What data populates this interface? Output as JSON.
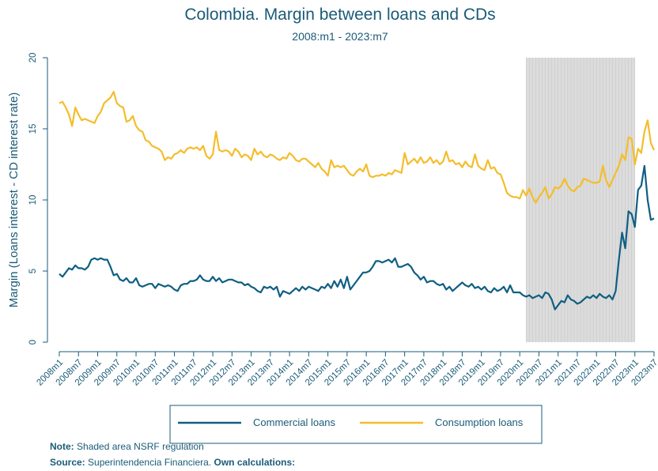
{
  "chart_data": {
    "type": "line",
    "title": "Colombia. Margin between loans and CDs",
    "subtitle": "2008:m1 - 2023:m7",
    "y_label": "Margin (Loans interest - CD interest rate)",
    "categories": [
      "2008m1",
      null,
      null,
      null,
      null,
      null,
      "2008m7",
      null,
      null,
      null,
      null,
      null,
      "2009m1",
      null,
      null,
      null,
      null,
      null,
      "2009m7",
      null,
      null,
      null,
      null,
      null,
      "2010m1",
      null,
      null,
      null,
      null,
      null,
      "2010m7",
      null,
      null,
      null,
      null,
      null,
      "2011m1",
      null,
      null,
      null,
      null,
      null,
      "2011m7",
      null,
      null,
      null,
      null,
      null,
      "2012m1",
      null,
      null,
      null,
      null,
      null,
      "2012m7",
      null,
      null,
      null,
      null,
      null,
      "2013m1",
      null,
      null,
      null,
      null,
      null,
      "2013m7",
      null,
      null,
      null,
      null,
      null,
      "2014m1",
      null,
      null,
      null,
      null,
      null,
      "2014m7",
      null,
      null,
      null,
      null,
      null,
      "2015m1",
      null,
      null,
      null,
      null,
      null,
      "2015m7",
      null,
      null,
      null,
      null,
      null,
      "2016m1",
      null,
      null,
      null,
      null,
      null,
      "2016m7",
      null,
      null,
      null,
      null,
      null,
      "2017m1",
      null,
      null,
      null,
      null,
      null,
      "2017m7",
      null,
      null,
      null,
      null,
      null,
      "2018m1",
      null,
      null,
      null,
      null,
      null,
      "2018m7",
      null,
      null,
      null,
      null,
      null,
      "2019m1",
      null,
      null,
      null,
      null,
      null,
      "2019m7",
      null,
      null,
      null,
      null,
      null,
      "2020m1",
      null,
      null,
      null,
      null,
      null,
      "2020m7",
      null,
      null,
      null,
      null,
      null,
      "2021m1",
      null,
      null,
      null,
      null,
      null,
      "2021m7",
      null,
      null,
      null,
      null,
      null,
      "2022m1",
      null,
      null,
      null,
      null,
      null,
      "2022m7",
      null,
      null,
      null,
      null,
      null,
      "2023m1",
      null,
      null,
      null,
      null,
      null,
      "2023m7"
    ],
    "series": [
      {
        "name": "Commercial loans",
        "color": "#0f5f82",
        "values": [
          4.8,
          4.6,
          4.9,
          5.2,
          5.1,
          5.4,
          5.2,
          5.2,
          5.1,
          5.3,
          5.8,
          5.9,
          5.8,
          5.9,
          5.8,
          5.8,
          5.3,
          4.7,
          4.8,
          4.4,
          4.3,
          4.5,
          4.2,
          4.2,
          4.5,
          4.0,
          3.9,
          4.0,
          4.1,
          4.1,
          3.8,
          4.1,
          4.0,
          3.9,
          4.0,
          3.9,
          3.7,
          3.6,
          4.0,
          4.1,
          4.1,
          4.3,
          4.3,
          4.4,
          4.7,
          4.4,
          4.3,
          4.3,
          4.6,
          4.3,
          4.5,
          4.2,
          4.3,
          4.4,
          4.4,
          4.3,
          4.2,
          4.2,
          4.0,
          4.1,
          3.9,
          3.8,
          3.6,
          3.5,
          3.9,
          3.8,
          3.9,
          3.7,
          3.9,
          3.2,
          3.6,
          3.5,
          3.4,
          3.6,
          3.8,
          3.6,
          3.9,
          3.7,
          3.9,
          3.8,
          3.7,
          3.6,
          3.9,
          3.8,
          4.1,
          3.8,
          4.3,
          3.9,
          4.4,
          3.8,
          4.6,
          3.7,
          4.0,
          4.3,
          4.6,
          4.9,
          4.9,
          5.0,
          5.3,
          5.7,
          5.7,
          5.6,
          5.7,
          5.8,
          5.6,
          5.9,
          5.3,
          5.3,
          5.4,
          5.5,
          5.3,
          4.9,
          4.7,
          4.4,
          4.6,
          4.2,
          4.3,
          4.3,
          4.1,
          4.0,
          4.1,
          3.7,
          3.9,
          3.6,
          3.8,
          4.0,
          4.2,
          4.0,
          3.9,
          4.1,
          3.8,
          3.9,
          3.7,
          3.9,
          3.6,
          3.5,
          3.8,
          3.6,
          3.7,
          3.9,
          3.5,
          4.0,
          3.5,
          3.5,
          3.5,
          3.3,
          3.2,
          3.3,
          3.1,
          3.2,
          3.3,
          3.1,
          3.5,
          3.4,
          3.0,
          2.3,
          2.6,
          2.9,
          2.8,
          3.3,
          3.0,
          2.9,
          2.7,
          2.8,
          3.0,
          3.2,
          3.1,
          3.3,
          3.1,
          3.4,
          3.2,
          3.1,
          3.3,
          3.0,
          3.6,
          5.8,
          7.7,
          6.6,
          9.2,
          9.0,
          8.1,
          10.7,
          11.0,
          12.4,
          10.0,
          8.6,
          8.7
        ]
      },
      {
        "name": "Consumption loans",
        "color": "#f5bd2c",
        "values": [
          16.8,
          16.9,
          16.5,
          16.0,
          15.2,
          16.5,
          16.0,
          15.6,
          15.7,
          15.6,
          15.5,
          15.4,
          15.9,
          16.2,
          16.8,
          17.0,
          17.2,
          17.6,
          16.8,
          16.6,
          16.5,
          15.5,
          15.6,
          15.9,
          15.2,
          14.9,
          14.8,
          14.2,
          14.1,
          13.8,
          13.7,
          13.6,
          13.4,
          12.8,
          13.0,
          12.9,
          13.2,
          13.3,
          13.5,
          13.3,
          13.6,
          13.7,
          13.6,
          13.7,
          13.5,
          13.8,
          13.1,
          12.9,
          13.2,
          14.8,
          13.5,
          13.4,
          13.5,
          13.4,
          13.1,
          13.6,
          13.4,
          13.0,
          13.2,
          13.1,
          12.8,
          13.6,
          13.2,
          13.4,
          13.1,
          13.0,
          13.2,
          13.1,
          12.9,
          12.8,
          13.0,
          12.9,
          13.3,
          13.1,
          12.8,
          12.7,
          12.9,
          12.9,
          12.7,
          12.5,
          12.3,
          12.6,
          12.2,
          12.0,
          11.7,
          12.8,
          12.3,
          12.4,
          12.3,
          12.4,
          12.1,
          11.8,
          11.7,
          12.0,
          12.2,
          12.0,
          12.5,
          11.7,
          11.6,
          11.7,
          11.7,
          11.8,
          11.7,
          11.9,
          11.8,
          12.1,
          12.0,
          11.9,
          13.3,
          12.5,
          12.7,
          12.9,
          12.6,
          13.0,
          12.6,
          12.7,
          13.0,
          12.6,
          12.8,
          12.5,
          12.7,
          13.4,
          12.7,
          12.8,
          12.5,
          12.6,
          12.3,
          12.7,
          12.4,
          12.3,
          13.2,
          12.4,
          12.2,
          12.1,
          12.8,
          12.2,
          12.3,
          11.9,
          11.8,
          11.2,
          10.5,
          10.3,
          10.2,
          10.2,
          10.1,
          10.7,
          10.3,
          10.8,
          10.2,
          9.8,
          10.2,
          10.5,
          10.9,
          10.1,
          10.4,
          10.9,
          10.8,
          11.0,
          11.5,
          11.0,
          10.7,
          10.6,
          10.9,
          11.0,
          11.5,
          11.4,
          11.3,
          11.2,
          11.2,
          11.3,
          12.4,
          11.4,
          10.9,
          11.4,
          11.9,
          12.4,
          13.2,
          12.8,
          14.4,
          14.3,
          12.5,
          13.6,
          13.3,
          14.8,
          15.6,
          14.0,
          13.5
        ]
      }
    ],
    "ylim": [
      0,
      20
    ],
    "yticks": [
      0,
      5,
      10,
      15,
      20
    ],
    "shaded": {
      "from": 146,
      "to": 180,
      "color": "#dcdcdc"
    },
    "note": {
      "label": "Note:",
      "text": "Shaded area NSRF regulation"
    },
    "source": {
      "label": "Source:",
      "text": "Superintendencia Financiera.",
      "extra": "Own calculations:"
    }
  }
}
